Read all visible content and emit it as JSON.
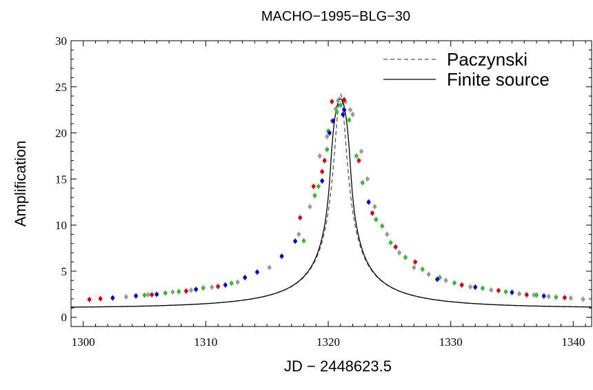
{
  "chart_data": {
    "type": "scatter",
    "title": "MACHO−1995−BLG−30",
    "xlabel": "JD − 2448623.5",
    "ylabel": "Amplification",
    "xlim": [
      1299,
      1341.5
    ],
    "ylim": [
      -1,
      30
    ],
    "x_ticks": [
      1300,
      1310,
      1320,
      1330,
      1340
    ],
    "y_ticks": [
      0,
      5,
      10,
      15,
      20,
      25,
      30
    ],
    "grid": false,
    "legend_position": "top-right",
    "curves": [
      {
        "name": "Paczynski",
        "style": "dashed",
        "color": "#555555",
        "model": {
          "t0": 1321.0,
          "tE": 13.0,
          "u0": 0.0413
        }
      },
      {
        "name": "Finite source",
        "style": "solid",
        "color": "#000000",
        "model": {
          "t0": 1321.0,
          "tE": 13.0,
          "u0": 0.0413,
          "rho": 0.075
        }
      }
    ],
    "series": [
      {
        "color": "#dd0000",
        "x": [
          1300.5,
          1301.4,
          1305.6,
          1308.4,
          1311.0,
          1317.7,
          1318.8,
          1319.5,
          1319.7,
          1320.3,
          1321.3,
          1322.5,
          1323.6,
          1325.5,
          1327.1,
          1330.9,
          1333.9,
          1336.2,
          1339.3
        ],
        "y": [
          1.93,
          2.02,
          2.45,
          2.85,
          3.34,
          10.8,
          14.2,
          15.8,
          17.0,
          23.4,
          23.6,
          17.0,
          11.3,
          7.63,
          6.0,
          3.5,
          2.9,
          2.44,
          2.13
        ]
      },
      {
        "color": "#0000dd",
        "x": [
          1302.4,
          1304.3,
          1306.0,
          1309.2,
          1311.6,
          1313.2,
          1314.2,
          1316.2,
          1317.3,
          1319.5,
          1320.1,
          1320.4,
          1321.2,
          1321.3,
          1323.3,
          1328.9,
          1332.0,
          1335.0,
          1337.6
        ],
        "y": [
          2.1,
          2.32,
          2.49,
          3.03,
          3.5,
          4.31,
          4.9,
          6.62,
          8.26,
          14.8,
          20.0,
          21.3,
          22.0,
          22.5,
          12.5,
          4.12,
          3.27,
          2.7,
          2.31
        ]
      },
      {
        "color": "#33bb33",
        "x": [
          1305.0,
          1306.7,
          1307.8,
          1309.8,
          1312.1,
          1318.0,
          1318.9,
          1319.2,
          1319.9,
          1320.0,
          1320.7,
          1321.0,
          1321.7,
          1322.3,
          1322.8,
          1323.9,
          1324.4,
          1325.1,
          1326.3,
          1327.7,
          1329.1,
          1330.3,
          1332.6,
          1334.5,
          1337.0,
          1338.6
        ],
        "y": [
          2.4,
          2.63,
          2.79,
          3.18,
          3.69,
          8.3,
          13.2,
          14.2,
          18.2,
          20.2,
          22.3,
          23.0,
          21.4,
          17.5,
          14.6,
          10.6,
          9.9,
          8.1,
          6.5,
          5.2,
          4.32,
          3.73,
          3.15,
          2.77,
          2.41,
          2.18
        ]
      },
      {
        "color": "#999999",
        "x": [
          1303.5,
          1305.3,
          1307.3,
          1308.8,
          1310.5,
          1312.6,
          1315.2,
          1317.6,
          1318.5,
          1319.3,
          1319.9,
          1320.3,
          1320.6,
          1320.8,
          1321.4,
          1321.8,
          1322.0,
          1322.7,
          1323.2,
          1323.8,
          1324.8,
          1325.8,
          1327.0,
          1328.2,
          1329.6,
          1331.6,
          1333.3,
          1335.6,
          1336.8,
          1338.0,
          1339.8,
          1340.8
        ],
        "y": [
          2.22,
          2.45,
          2.74,
          2.94,
          3.27,
          3.82,
          5.4,
          9.0,
          12.0,
          17.5,
          19.6,
          21.3,
          22.6,
          23.5,
          23.4,
          22.5,
          22.0,
          18.0,
          15.0,
          12.0,
          9.0,
          7.0,
          5.4,
          4.66,
          4.0,
          3.3,
          2.96,
          2.55,
          2.42,
          2.25,
          2.08,
          1.96
        ]
      }
    ]
  }
}
